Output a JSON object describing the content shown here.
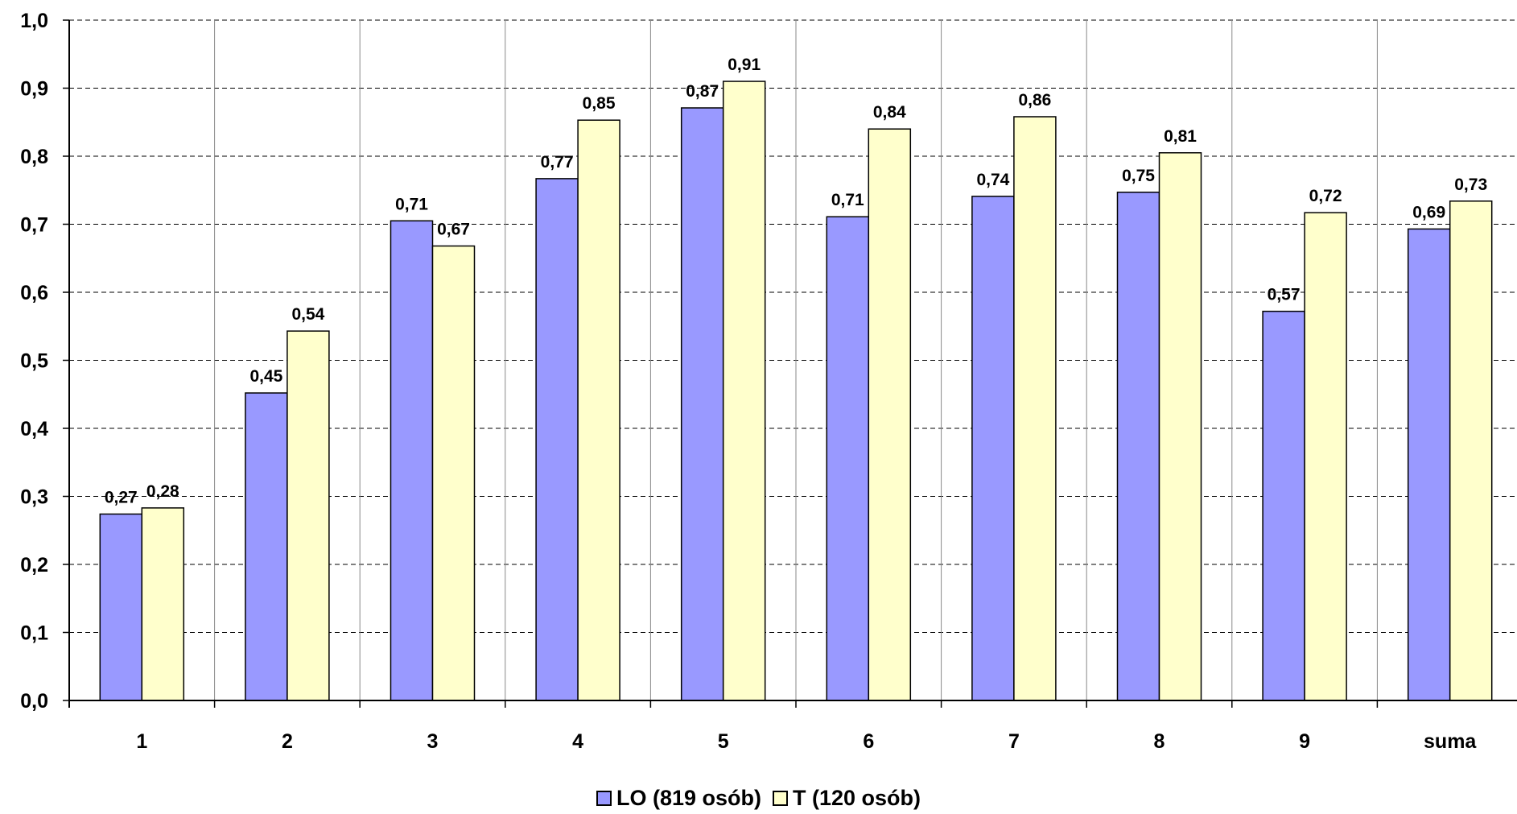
{
  "chart_data": {
    "type": "bar",
    "categories": [
      "1",
      "2",
      "3",
      "4",
      "5",
      "6",
      "7",
      "8",
      "9",
      "suma"
    ],
    "series": [
      {
        "name": "LO (819 osób)",
        "color": "#9999ff",
        "values": [
          0.274,
          0.452,
          0.705,
          0.767,
          0.871,
          0.711,
          0.741,
          0.747,
          0.572,
          0.693
        ],
        "labels": [
          "0,27",
          "0,45",
          "0,71",
          "0,77",
          "0,87",
          "0,71",
          "0,74",
          "0,75",
          "0,57",
          "0,69"
        ]
      },
      {
        "name": "T (120 osób)",
        "color": "#ffffcc",
        "values": [
          0.283,
          0.543,
          0.668,
          0.853,
          0.91,
          0.84,
          0.858,
          0.805,
          0.717,
          0.734
        ],
        "labels": [
          "0,28",
          "0,54",
          "0,67",
          "0,85",
          "0,91",
          "0,84",
          "0,86",
          "0,81",
          "0,72",
          "0,73"
        ]
      }
    ],
    "ylim": [
      0,
      1.0
    ],
    "yticks": [
      "0,0",
      "0,1",
      "0,2",
      "0,3",
      "0,4",
      "0,5",
      "0,6",
      "0,7",
      "0,8",
      "0,9",
      "1,0"
    ],
    "grid": "dashed horizontal",
    "legend": "bottom-center"
  }
}
